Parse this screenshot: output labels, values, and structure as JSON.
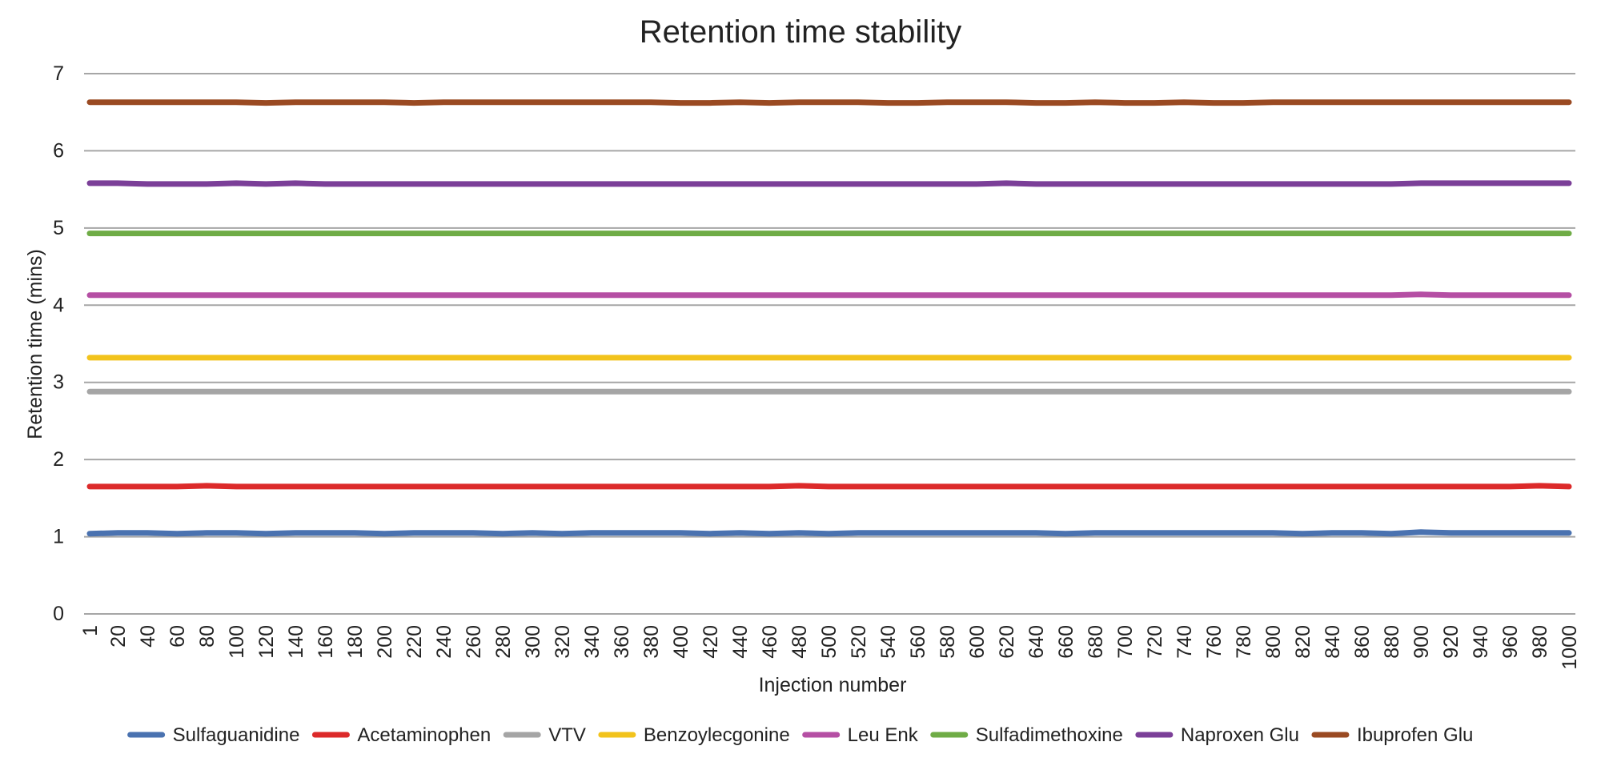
{
  "chart_data": {
    "type": "line",
    "title": "Retention time stability",
    "xlabel": "Injection number",
    "ylabel": "Retention time (mins)",
    "ylim": [
      0,
      7
    ],
    "xlim": [
      1,
      1000
    ],
    "y_ticks": [
      "0",
      "1",
      "2",
      "3",
      "4",
      "5",
      "6",
      "7"
    ],
    "x_ticks": [
      "1",
      "20",
      "40",
      "60",
      "80",
      "100",
      "120",
      "140",
      "160",
      "180",
      "200",
      "220",
      "240",
      "260",
      "280",
      "300",
      "320",
      "340",
      "360",
      "380",
      "400",
      "420",
      "440",
      "460",
      "480",
      "500",
      "520",
      "540",
      "560",
      "580",
      "600",
      "620",
      "640",
      "660",
      "680",
      "700",
      "720",
      "740",
      "760",
      "780",
      "800",
      "820",
      "840",
      "860",
      "880",
      "900",
      "920",
      "940",
      "960",
      "980",
      "1000"
    ],
    "grid": "horizontal",
    "legend_position": "bottom",
    "x": [
      1,
      20,
      40,
      60,
      80,
      100,
      120,
      140,
      160,
      180,
      200,
      220,
      240,
      260,
      280,
      300,
      320,
      340,
      360,
      380,
      400,
      420,
      440,
      460,
      480,
      500,
      520,
      540,
      560,
      580,
      600,
      620,
      640,
      660,
      680,
      700,
      720,
      740,
      760,
      780,
      800,
      820,
      840,
      860,
      880,
      900,
      920,
      940,
      960,
      980,
      1000
    ],
    "series": [
      {
        "name": "Sulfaguanidine",
        "color": "#4a72b0",
        "values": [
          1.04,
          1.05,
          1.05,
          1.04,
          1.05,
          1.05,
          1.04,
          1.05,
          1.05,
          1.05,
          1.04,
          1.05,
          1.05,
          1.05,
          1.04,
          1.05,
          1.04,
          1.05,
          1.05,
          1.05,
          1.05,
          1.04,
          1.05,
          1.04,
          1.05,
          1.04,
          1.05,
          1.05,
          1.05,
          1.05,
          1.05,
          1.05,
          1.05,
          1.04,
          1.05,
          1.05,
          1.05,
          1.05,
          1.05,
          1.05,
          1.05,
          1.04,
          1.05,
          1.05,
          1.04,
          1.06,
          1.05,
          1.05,
          1.05,
          1.05,
          1.05
        ]
      },
      {
        "name": "Acetaminophen",
        "color": "#dc2a2a",
        "values": [
          1.65,
          1.65,
          1.65,
          1.65,
          1.66,
          1.65,
          1.65,
          1.65,
          1.65,
          1.65,
          1.65,
          1.65,
          1.65,
          1.65,
          1.65,
          1.65,
          1.65,
          1.65,
          1.65,
          1.65,
          1.65,
          1.65,
          1.65,
          1.65,
          1.66,
          1.65,
          1.65,
          1.65,
          1.65,
          1.65,
          1.65,
          1.65,
          1.65,
          1.65,
          1.65,
          1.65,
          1.65,
          1.65,
          1.65,
          1.65,
          1.65,
          1.65,
          1.65,
          1.65,
          1.65,
          1.65,
          1.65,
          1.65,
          1.65,
          1.66,
          1.65
        ]
      },
      {
        "name": "VTV",
        "color": "#a5a5a5",
        "values": [
          2.88,
          2.88,
          2.88,
          2.88,
          2.88,
          2.88,
          2.88,
          2.88,
          2.88,
          2.88,
          2.88,
          2.88,
          2.88,
          2.88,
          2.88,
          2.88,
          2.88,
          2.88,
          2.88,
          2.88,
          2.88,
          2.88,
          2.88,
          2.88,
          2.88,
          2.88,
          2.88,
          2.88,
          2.88,
          2.88,
          2.88,
          2.88,
          2.88,
          2.88,
          2.88,
          2.88,
          2.88,
          2.88,
          2.88,
          2.88,
          2.88,
          2.88,
          2.88,
          2.88,
          2.88,
          2.88,
          2.88,
          2.88,
          2.88,
          2.88,
          2.88
        ]
      },
      {
        "name": "Benzoylecgonine",
        "color": "#f2c31c",
        "values": [
          3.32,
          3.32,
          3.32,
          3.32,
          3.32,
          3.32,
          3.32,
          3.32,
          3.32,
          3.32,
          3.32,
          3.32,
          3.32,
          3.32,
          3.32,
          3.32,
          3.32,
          3.32,
          3.32,
          3.32,
          3.32,
          3.32,
          3.32,
          3.32,
          3.32,
          3.32,
          3.32,
          3.32,
          3.32,
          3.32,
          3.32,
          3.32,
          3.32,
          3.32,
          3.32,
          3.32,
          3.32,
          3.32,
          3.32,
          3.32,
          3.32,
          3.32,
          3.32,
          3.32,
          3.32,
          3.32,
          3.32,
          3.32,
          3.32,
          3.32,
          3.32
        ]
      },
      {
        "name": "Leu Enk",
        "color": "#b54fa4",
        "values": [
          4.13,
          4.13,
          4.13,
          4.13,
          4.13,
          4.13,
          4.13,
          4.13,
          4.13,
          4.13,
          4.13,
          4.13,
          4.13,
          4.13,
          4.13,
          4.13,
          4.13,
          4.13,
          4.13,
          4.13,
          4.13,
          4.13,
          4.13,
          4.13,
          4.13,
          4.13,
          4.13,
          4.13,
          4.13,
          4.13,
          4.13,
          4.13,
          4.13,
          4.13,
          4.13,
          4.13,
          4.13,
          4.13,
          4.13,
          4.13,
          4.13,
          4.13,
          4.13,
          4.13,
          4.13,
          4.14,
          4.13,
          4.13,
          4.13,
          4.13,
          4.13
        ]
      },
      {
        "name": "Sulfadimethoxine",
        "color": "#6fac46",
        "values": [
          4.93,
          4.93,
          4.93,
          4.93,
          4.93,
          4.93,
          4.93,
          4.93,
          4.93,
          4.93,
          4.93,
          4.93,
          4.93,
          4.93,
          4.93,
          4.93,
          4.93,
          4.93,
          4.93,
          4.93,
          4.93,
          4.93,
          4.93,
          4.93,
          4.93,
          4.93,
          4.93,
          4.93,
          4.93,
          4.93,
          4.93,
          4.93,
          4.93,
          4.93,
          4.93,
          4.93,
          4.93,
          4.93,
          4.93,
          4.93,
          4.93,
          4.93,
          4.93,
          4.93,
          4.93,
          4.93,
          4.93,
          4.93,
          4.93,
          4.93,
          4.93
        ]
      },
      {
        "name": "Naproxen Glu",
        "color": "#7b3f98",
        "values": [
          5.58,
          5.58,
          5.57,
          5.57,
          5.57,
          5.58,
          5.57,
          5.58,
          5.57,
          5.57,
          5.57,
          5.57,
          5.57,
          5.57,
          5.57,
          5.57,
          5.57,
          5.57,
          5.57,
          5.57,
          5.57,
          5.57,
          5.57,
          5.57,
          5.57,
          5.57,
          5.57,
          5.57,
          5.57,
          5.57,
          5.57,
          5.58,
          5.57,
          5.57,
          5.57,
          5.57,
          5.57,
          5.57,
          5.57,
          5.57,
          5.57,
          5.57,
          5.57,
          5.57,
          5.57,
          5.58,
          5.58,
          5.58,
          5.58,
          5.58,
          5.58
        ]
      },
      {
        "name": "Ibuprofen Glu",
        "color": "#9a4a22",
        "values": [
          6.63,
          6.63,
          6.63,
          6.63,
          6.63,
          6.63,
          6.62,
          6.63,
          6.63,
          6.63,
          6.63,
          6.62,
          6.63,
          6.63,
          6.63,
          6.63,
          6.63,
          6.63,
          6.63,
          6.63,
          6.62,
          6.62,
          6.63,
          6.62,
          6.63,
          6.63,
          6.63,
          6.62,
          6.62,
          6.63,
          6.63,
          6.63,
          6.62,
          6.62,
          6.63,
          6.62,
          6.62,
          6.63,
          6.62,
          6.62,
          6.63,
          6.63,
          6.63,
          6.63,
          6.63,
          6.63,
          6.63,
          6.63,
          6.63,
          6.63,
          6.63
        ]
      }
    ]
  }
}
